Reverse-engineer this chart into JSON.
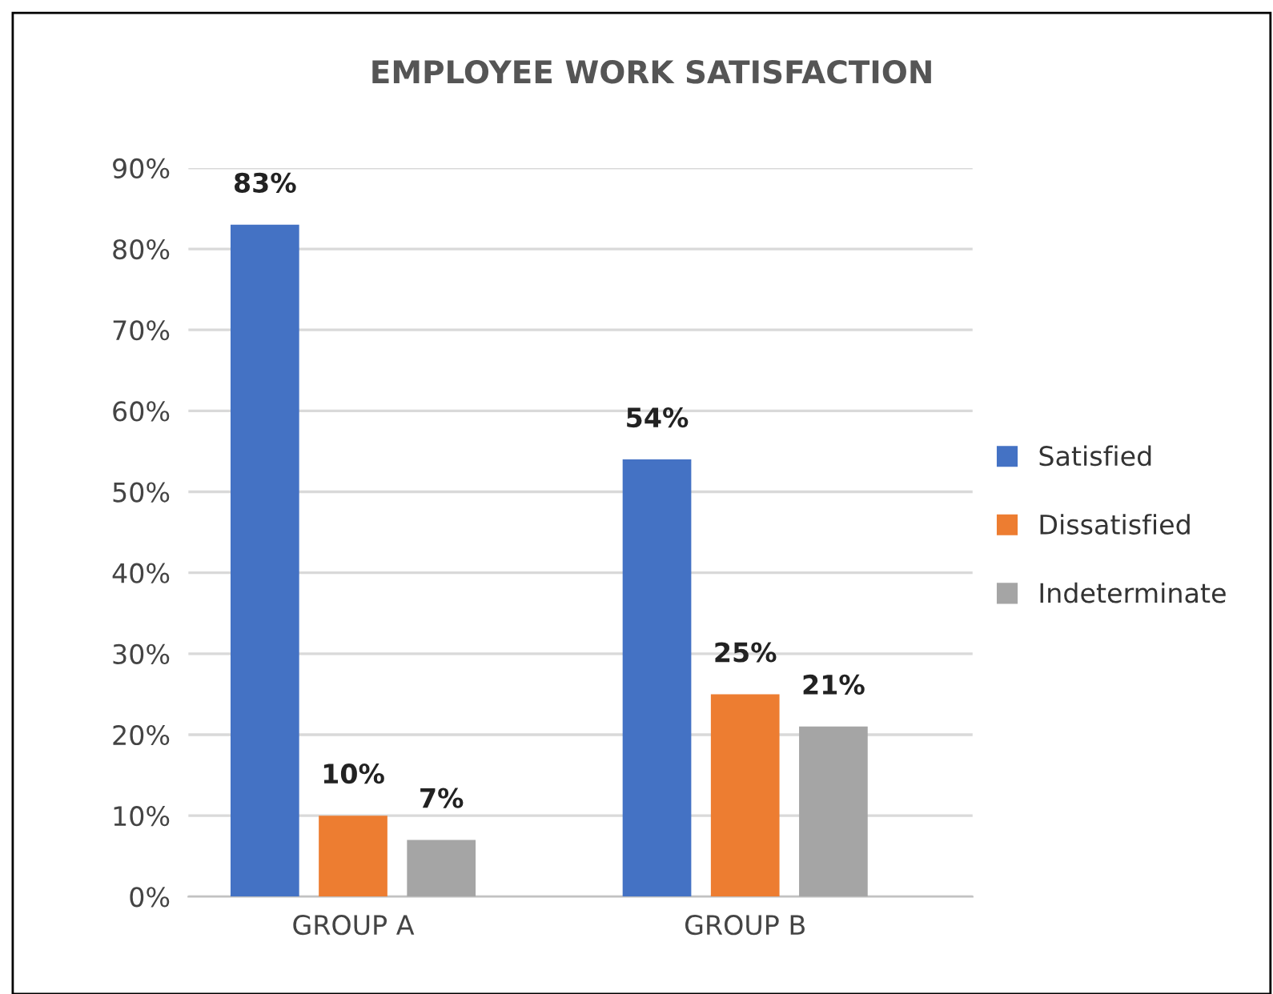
{
  "chart_data": {
    "type": "bar",
    "title": "EMPLOYEE WORK SATISFACTION",
    "categories": [
      "GROUP A",
      "GROUP B"
    ],
    "series": [
      {
        "name": "Satisfied",
        "color": "#4472c4",
        "values": [
          83,
          54
        ],
        "value_labels": [
          "83%",
          "54%"
        ]
      },
      {
        "name": "Dissatisfied",
        "color": "#ed7d31",
        "values": [
          10,
          25
        ],
        "value_labels": [
          "10%",
          "25%"
        ]
      },
      {
        "name": "Indeterminate",
        "color": "#a5a5a5",
        "values": [
          7,
          21
        ],
        "value_labels": [
          "7%",
          "21%"
        ]
      }
    ],
    "ylim": [
      0,
      90
    ],
    "yticks": [
      {
        "value": 0,
        "label": "0%"
      },
      {
        "value": 10,
        "label": "10%"
      },
      {
        "value": 20,
        "label": "20%"
      },
      {
        "value": 30,
        "label": "30%"
      },
      {
        "value": 40,
        "label": "40%"
      },
      {
        "value": 50,
        "label": "50%"
      },
      {
        "value": 60,
        "label": "60%"
      },
      {
        "value": 70,
        "label": "70%"
      },
      {
        "value": 80,
        "label": "80%"
      },
      {
        "value": 90,
        "label": "90%"
      }
    ],
    "grid": "y",
    "legend": "right"
  }
}
